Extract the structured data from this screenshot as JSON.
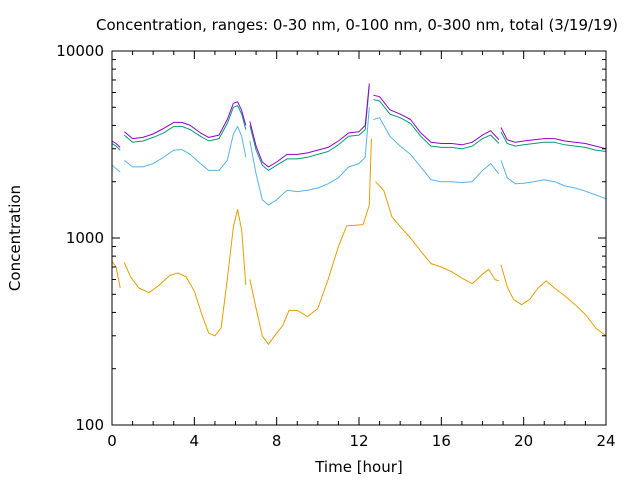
{
  "chart_data": {
    "type": "line",
    "title": "Concentration, ranges: 0-30 nm, 0-100 nm, 0-300 nm, total (3/19/19)",
    "xlabel": "Time [hour]",
    "ylabel": "Concentration",
    "xlim": [
      0,
      24
    ],
    "ylim": [
      100,
      10000
    ],
    "yscale": "log",
    "x_ticks": [
      0,
      4,
      8,
      12,
      16,
      20,
      24
    ],
    "y_ticks": [
      100,
      1000,
      10000
    ],
    "x_tick_labels": [
      "0",
      "4",
      "8",
      "12",
      "16",
      "20",
      "24"
    ],
    "y_tick_labels": [
      "100",
      "1000",
      "10000"
    ],
    "grid": false,
    "legend": "none",
    "series": [
      {
        "color": "#e69f00",
        "segments": [
          [
            [
              0,
              750
            ],
            [
              0.2,
              700
            ],
            [
              0.4,
              540
            ]
          ],
          [
            [
              0.6,
              740
            ],
            [
              0.9,
              620
            ],
            [
              1.3,
              540
            ],
            [
              1.8,
              510
            ],
            [
              2.3,
              560
            ],
            [
              2.8,
              630
            ],
            [
              3.2,
              650
            ],
            [
              3.6,
              620
            ],
            [
              4.0,
              520
            ],
            [
              4.4,
              380
            ],
            [
              4.7,
              310
            ],
            [
              5.0,
              300
            ],
            [
              5.3,
              330
            ],
            [
              5.6,
              600
            ],
            [
              5.9,
              1150
            ],
            [
              6.1,
              1420
            ],
            [
              6.3,
              1100
            ],
            [
              6.5,
              560
            ]
          ],
          [
            [
              6.7,
              600
            ],
            [
              7.0,
              420
            ],
            [
              7.3,
              300
            ],
            [
              7.6,
              270
            ],
            [
              8.0,
              310
            ],
            [
              8.3,
              340
            ],
            [
              8.6,
              410
            ],
            [
              9.0,
              410
            ],
            [
              9.5,
              380
            ],
            [
              10.0,
              420
            ],
            [
              10.5,
              600
            ],
            [
              11.0,
              900
            ],
            [
              11.4,
              1160
            ],
            [
              11.8,
              1170
            ],
            [
              12.2,
              1180
            ],
            [
              12.5,
              1500
            ],
            [
              12.6,
              3400
            ]
          ],
          [
            [
              12.8,
              2000
            ],
            [
              13.2,
              1800
            ],
            [
              13.6,
              1300
            ],
            [
              14.0,
              1150
            ],
            [
              14.5,
              1000
            ],
            [
              15.0,
              850
            ],
            [
              15.5,
              730
            ],
            [
              16.0,
              700
            ],
            [
              16.5,
              660
            ],
            [
              17.0,
              610
            ],
            [
              17.5,
              570
            ],
            [
              18.0,
              640
            ],
            [
              18.3,
              680
            ],
            [
              18.6,
              600
            ],
            [
              18.8,
              590
            ]
          ],
          [
            [
              18.9,
              720
            ],
            [
              19.2,
              550
            ],
            [
              19.5,
              470
            ],
            [
              19.9,
              440
            ],
            [
              20.3,
              470
            ],
            [
              20.7,
              540
            ],
            [
              21.1,
              590
            ],
            [
              21.5,
              540
            ],
            [
              22.0,
              490
            ],
            [
              22.5,
              440
            ],
            [
              23.0,
              390
            ],
            [
              23.5,
              330
            ],
            [
              24.0,
              300
            ]
          ]
        ]
      },
      {
        "color": "#56b4e9",
        "segments": [
          [
            [
              0,
              2450
            ],
            [
              0.2,
              2350
            ],
            [
              0.4,
              2250
            ]
          ],
          [
            [
              0.6,
              2600
            ],
            [
              1.0,
              2400
            ],
            [
              1.5,
              2400
            ],
            [
              2.0,
              2500
            ],
            [
              2.5,
              2700
            ],
            [
              3.0,
              2950
            ],
            [
              3.4,
              2970
            ],
            [
              3.8,
              2800
            ],
            [
              4.3,
              2500
            ],
            [
              4.7,
              2300
            ],
            [
              5.2,
              2300
            ],
            [
              5.6,
              2600
            ],
            [
              5.9,
              3600
            ],
            [
              6.1,
              3950
            ],
            [
              6.3,
              3500
            ],
            [
              6.5,
              2700
            ]
          ],
          [
            [
              6.7,
              3300
            ],
            [
              7.0,
              2200
            ],
            [
              7.3,
              1600
            ],
            [
              7.6,
              1500
            ],
            [
              8.0,
              1600
            ],
            [
              8.5,
              1800
            ],
            [
              9.0,
              1770
            ],
            [
              9.5,
              1800
            ],
            [
              10.0,
              1850
            ],
            [
              10.5,
              1950
            ],
            [
              11.0,
              2100
            ],
            [
              11.5,
              2400
            ],
            [
              12.0,
              2500
            ],
            [
              12.3,
              2700
            ],
            [
              12.5,
              5000
            ]
          ],
          [
            [
              12.7,
              4300
            ],
            [
              13.0,
              4400
            ],
            [
              13.5,
              3500
            ],
            [
              14.0,
              3100
            ],
            [
              14.5,
              2800
            ],
            [
              15.0,
              2400
            ],
            [
              15.5,
              2050
            ],
            [
              16.0,
              2000
            ],
            [
              16.5,
              2000
            ],
            [
              17.0,
              1980
            ],
            [
              17.5,
              2000
            ],
            [
              18.0,
              2300
            ],
            [
              18.4,
              2500
            ],
            [
              18.8,
              2200
            ]
          ],
          [
            [
              18.9,
              2600
            ],
            [
              19.2,
              2100
            ],
            [
              19.6,
              1950
            ],
            [
              20.0,
              1960
            ],
            [
              20.5,
              2000
            ],
            [
              21.0,
              2050
            ],
            [
              21.5,
              2000
            ],
            [
              22.0,
              1900
            ],
            [
              22.5,
              1850
            ],
            [
              23.0,
              1780
            ],
            [
              23.5,
              1700
            ],
            [
              24.0,
              1620
            ]
          ]
        ]
      },
      {
        "color": "#009e73",
        "segments": [
          [
            [
              0,
              3200
            ],
            [
              0.2,
              3100
            ],
            [
              0.4,
              2950
            ]
          ],
          [
            [
              0.6,
              3550
            ],
            [
              1.0,
              3250
            ],
            [
              1.5,
              3300
            ],
            [
              2.0,
              3450
            ],
            [
              2.5,
              3650
            ],
            [
              3.0,
              3950
            ],
            [
              3.4,
              3950
            ],
            [
              3.8,
              3800
            ],
            [
              4.3,
              3500
            ],
            [
              4.7,
              3300
            ],
            [
              5.2,
              3400
            ],
            [
              5.6,
              4100
            ],
            [
              5.9,
              5000
            ],
            [
              6.1,
              5100
            ],
            [
              6.3,
              4600
            ],
            [
              6.5,
              3800
            ]
          ],
          [
            [
              6.7,
              4000
            ],
            [
              7.0,
              2950
            ],
            [
              7.3,
              2450
            ],
            [
              7.6,
              2300
            ],
            [
              8.0,
              2450
            ],
            [
              8.5,
              2650
            ],
            [
              9.0,
              2650
            ],
            [
              9.5,
              2700
            ],
            [
              10.0,
              2800
            ],
            [
              10.5,
              2900
            ],
            [
              11.0,
              3150
            ],
            [
              11.5,
              3500
            ],
            [
              12.0,
              3550
            ],
            [
              12.3,
              3800
            ],
            [
              12.5,
              6500
            ]
          ],
          [
            [
              12.7,
              5500
            ],
            [
              13.0,
              5400
            ],
            [
              13.5,
              4600
            ],
            [
              14.0,
              4400
            ],
            [
              14.5,
              4100
            ],
            [
              15.0,
              3500
            ],
            [
              15.5,
              3100
            ],
            [
              16.0,
              3050
            ],
            [
              16.5,
              3050
            ],
            [
              17.0,
              3000
            ],
            [
              17.5,
              3100
            ],
            [
              18.0,
              3400
            ],
            [
              18.4,
              3550
            ],
            [
              18.8,
              3200
            ]
          ],
          [
            [
              18.9,
              3700
            ],
            [
              19.2,
              3200
            ],
            [
              19.6,
              3100
            ],
            [
              20.0,
              3150
            ],
            [
              20.5,
              3200
            ],
            [
              21.0,
              3250
            ],
            [
              21.5,
              3250
            ],
            [
              22.0,
              3150
            ],
            [
              22.5,
              3100
            ],
            [
              23.0,
              3050
            ],
            [
              23.5,
              2950
            ],
            [
              24.0,
              2900
            ]
          ]
        ]
      },
      {
        "color": "#9400d3",
        "segments": [
          [
            [
              0,
              3300
            ],
            [
              0.2,
              3200
            ],
            [
              0.4,
              3050
            ]
          ],
          [
            [
              0.6,
              3700
            ],
            [
              1.0,
              3400
            ],
            [
              1.5,
              3450
            ],
            [
              2.0,
              3600
            ],
            [
              2.5,
              3850
            ],
            [
              3.0,
              4150
            ],
            [
              3.4,
              4150
            ],
            [
              3.8,
              4000
            ],
            [
              4.3,
              3650
            ],
            [
              4.7,
              3450
            ],
            [
              5.2,
              3550
            ],
            [
              5.6,
              4300
            ],
            [
              5.9,
              5250
            ],
            [
              6.1,
              5350
            ],
            [
              6.3,
              4800
            ],
            [
              6.5,
              4000
            ]
          ],
          [
            [
              6.7,
              4200
            ],
            [
              7.0,
              3100
            ],
            [
              7.3,
              2550
            ],
            [
              7.6,
              2400
            ],
            [
              8.0,
              2550
            ],
            [
              8.5,
              2800
            ],
            [
              9.0,
              2800
            ],
            [
              9.5,
              2850
            ],
            [
              10.0,
              2950
            ],
            [
              10.5,
              3050
            ],
            [
              11.0,
              3300
            ],
            [
              11.5,
              3650
            ],
            [
              12.0,
              3700
            ],
            [
              12.3,
              4000
            ],
            [
              12.5,
              6700
            ]
          ],
          [
            [
              12.7,
              5800
            ],
            [
              13.0,
              5700
            ],
            [
              13.5,
              4850
            ],
            [
              14.0,
              4600
            ],
            [
              14.5,
              4300
            ],
            [
              15.0,
              3650
            ],
            [
              15.5,
              3250
            ],
            [
              16.0,
              3200
            ],
            [
              16.5,
              3200
            ],
            [
              17.0,
              3150
            ],
            [
              17.5,
              3250
            ],
            [
              18.0,
              3550
            ],
            [
              18.4,
              3750
            ],
            [
              18.8,
              3350
            ]
          ],
          [
            [
              18.9,
              3900
            ],
            [
              19.2,
              3350
            ],
            [
              19.6,
              3250
            ],
            [
              20.0,
              3300
            ],
            [
              20.5,
              3350
            ],
            [
              21.0,
              3400
            ],
            [
              21.5,
              3400
            ],
            [
              22.0,
              3300
            ],
            [
              22.5,
              3250
            ],
            [
              23.0,
              3200
            ],
            [
              23.5,
              3100
            ],
            [
              24.0,
              3000
            ]
          ]
        ]
      }
    ]
  }
}
